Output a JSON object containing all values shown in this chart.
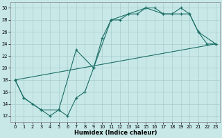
{
  "xlabel": "Humidex (Indice chaleur)",
  "background_color": "#c8e8e8",
  "grid_color": "#a8cccc",
  "line_color": "#1a6e65",
  "xlim": [
    -0.5,
    23.5
  ],
  "ylim": [
    11.0,
    31.0
  ],
  "xticks": [
    0,
    1,
    2,
    3,
    4,
    5,
    6,
    7,
    8,
    9,
    10,
    11,
    12,
    13,
    14,
    15,
    16,
    17,
    18,
    19,
    20,
    21,
    22,
    23
  ],
  "yticks": [
    12,
    14,
    16,
    18,
    20,
    22,
    24,
    26,
    28,
    30
  ],
  "line1_x": [
    0,
    1,
    2,
    3,
    4,
    5,
    6,
    7,
    8,
    9,
    10,
    11,
    12,
    13,
    14,
    15,
    16,
    17,
    18,
    19,
    20,
    21,
    22,
    23
  ],
  "line1_y": [
    18,
    15,
    14,
    13,
    12,
    13,
    12,
    15,
    16,
    20,
    25,
    28,
    28,
    29,
    29,
    30,
    30,
    29,
    29,
    30,
    29,
    26,
    24,
    24
  ],
  "line2_x": [
    0,
    1,
    3,
    5,
    7,
    9,
    11,
    13,
    15,
    17,
    19,
    20,
    21,
    23
  ],
  "line2_y": [
    18,
    15,
    13,
    13,
    23,
    20,
    28,
    29,
    30,
    29,
    29,
    29,
    26,
    24
  ],
  "line3_x": [
    0,
    23
  ],
  "line3_y": [
    18,
    24
  ]
}
